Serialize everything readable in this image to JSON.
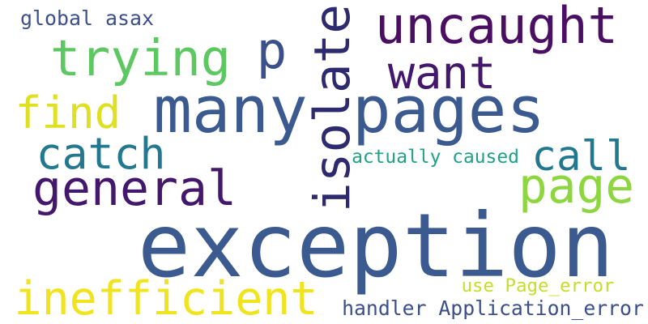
{
  "words": [
    {
      "key": "exception",
      "text": "exception",
      "color": "#3b5a8f"
    },
    {
      "key": "many",
      "text": "many",
      "color": "#3b5a8f"
    },
    {
      "key": "pages",
      "text": "pages",
      "color": "#3b5a8f"
    },
    {
      "key": "p",
      "text": "p",
      "color": "#3b4f8a"
    },
    {
      "key": "isolate",
      "text": "isolate",
      "color": "#2e2a6e"
    },
    {
      "key": "uncaught",
      "text": "uncaught",
      "color": "#4a0f63"
    },
    {
      "key": "want",
      "text": "want",
      "color": "#43176b"
    },
    {
      "key": "trying",
      "text": "trying",
      "color": "#5dc862"
    },
    {
      "key": "find",
      "text": "find",
      "color": "#dfe022"
    },
    {
      "key": "catch",
      "text": "catch",
      "color": "#22788e"
    },
    {
      "key": "general",
      "text": "general",
      "color": "#43176b"
    },
    {
      "key": "call",
      "text": "call",
      "color": "#22788e"
    },
    {
      "key": "page",
      "text": "page",
      "color": "#8ed63f"
    },
    {
      "key": "inefficient",
      "text": "inefficient",
      "color": "#f0e41f"
    },
    {
      "key": "global",
      "text": "global asax",
      "color": "#3b4f8a"
    },
    {
      "key": "caused",
      "text": "actually caused",
      "color": "#1fa187"
    },
    {
      "key": "use",
      "text": "use Page_error",
      "color": "#c4de2a"
    },
    {
      "key": "handler",
      "text": "handler Application_error",
      "color": "#3b4f8a"
    }
  ]
}
